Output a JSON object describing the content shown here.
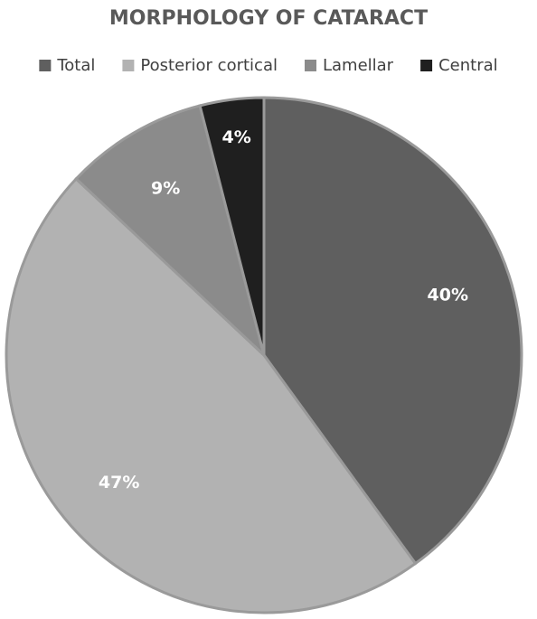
{
  "chart_data": {
    "type": "pie",
    "title": "MORPHOLOGY OF CATARACT",
    "categories": [
      "Total",
      "Posterior cortical",
      "Lamellar",
      "Central"
    ],
    "values": [
      40,
      47,
      9,
      4
    ],
    "value_labels": [
      "40%",
      "47%",
      "9%",
      "4%"
    ],
    "colors": [
      "#5f5f5f",
      "#b2b2b2",
      "#8b8b8b",
      "#1f1f1f"
    ],
    "legend": "top"
  }
}
